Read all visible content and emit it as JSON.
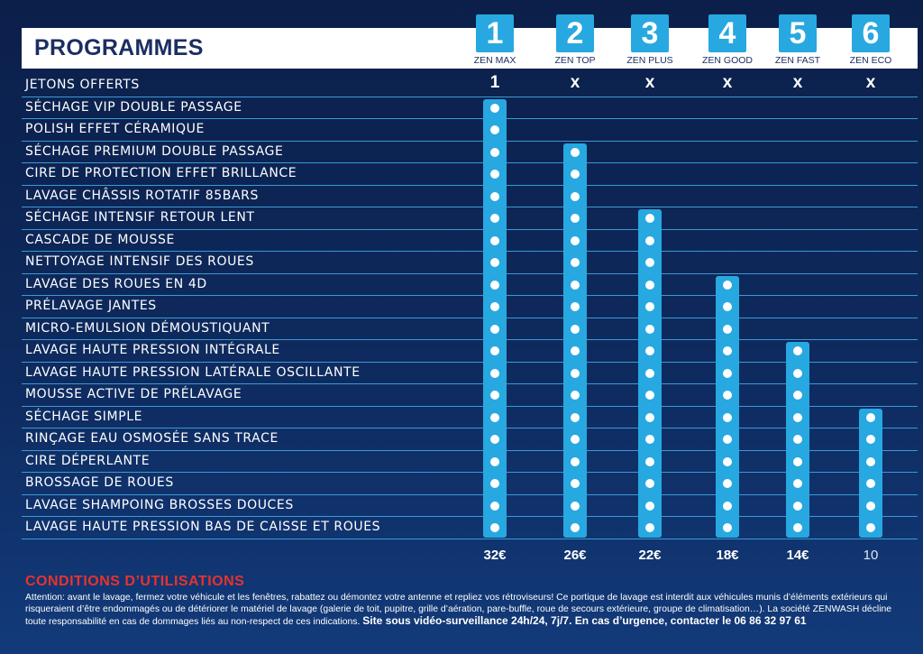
{
  "title": "PROGRAMMES",
  "programs": [
    {
      "number": "1",
      "name": "ZEN MAX",
      "tokens": "1",
      "price": "32€",
      "features_count": 20
    },
    {
      "number": "2",
      "name": "ZEN TOP",
      "tokens": "x",
      "price": "26€",
      "features_count": 18
    },
    {
      "number": "3",
      "name": "ZEN PLUS",
      "tokens": "x",
      "price": "22€",
      "features_count": 15
    },
    {
      "number": "4",
      "name": "ZEN GOOD",
      "tokens": "x",
      "price": "18€",
      "features_count": 12
    },
    {
      "number": "5",
      "name": "ZEN FAST",
      "tokens": "x",
      "price": "14€",
      "features_count": 9
    },
    {
      "number": "6",
      "name": "ZEN ECO",
      "tokens": "x",
      "price": "10",
      "features_count": 6
    }
  ],
  "features": [
    "JETONS OFFERTS",
    "SÉCHAGE VIP DOUBLE PASSAGE",
    "POLISH EFFET CÉRAMIQUE",
    "SÉCHAGE PREMIUM DOUBLE PASSAGE",
    "CIRE DE PROTECTION EFFET BRILLANCE",
    "LAVAGE CHÂSSIS ROTATIF 85BARS",
    "SÉCHAGE INTENSIF RETOUR LENT",
    "CASCADE DE MOUSSE",
    "NETTOYAGE INTENSIF DES ROUES",
    "LAVAGE DES ROUES EN 4D",
    "PRÉLAVAGE JANTES",
    "MICRO-EMULSION DÉMOUSTIQUANT",
    "LAVAGE HAUTE PRESSION INTÉGRALE",
    "LAVAGE HAUTE PRESSION LATÉRALE OSCILLANTE",
    "MOUSSE ACTIVE DE PRÉLAVAGE",
    "SÉCHAGE SIMPLE",
    "RINÇAGE EAU OSMOSÉE SANS TRACE",
    "CIRE DÉPERLANTE",
    "BROSSAGE DE ROUES",
    "LAVAGE SHAMPOING BROSSES DOUCES",
    "LAVAGE HAUTE PRESSION BAS DE CAISSE ET ROUES"
  ],
  "conditions": {
    "title": "CONDITIONS D’UTILISATIONS",
    "text": "Attention: avant le lavage, fermez votre véhicule et les fenêtres, rabattez ou démontez votre antenne et repliez vos rétroviseurs! Ce portique de lavage est interdit aux véhicules munis d’éléments extérieurs qui risqueraient d’être endommagés ou de détériorer le matériel de lavage (galerie de toit, pupitre, grille d’aération, pare-buffle, roue de secours extérieure, groupe de climatisation…). La société ZENWASH décline toute responsabilité en cas de dommages liés au non-respect de ces indications.",
    "strong": "Site sous vidéo-surveillance 24h/24, 7j/7. En cas d’urgence, contacter le 06 86 32 97 61"
  },
  "colors": {
    "accent": "#27a8e0",
    "title_text": "#1b2e63",
    "conditions_title": "#e8322e"
  }
}
